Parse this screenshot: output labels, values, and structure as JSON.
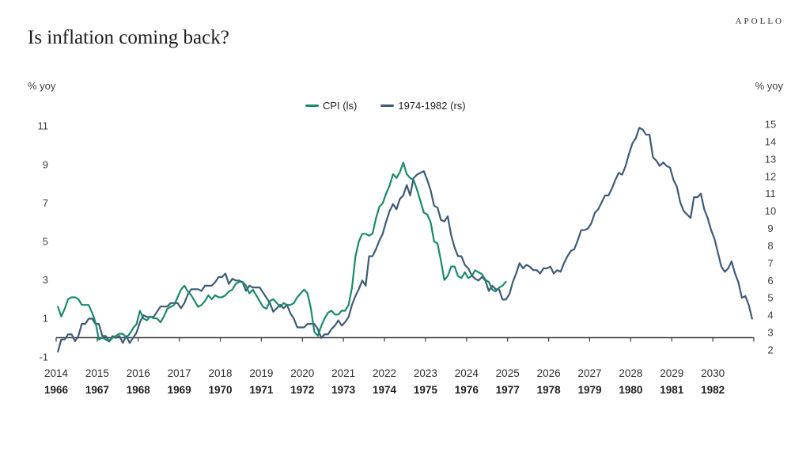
{
  "brand": {
    "logo_text": "APOLLO"
  },
  "header": {
    "title": "Is inflation coming back?"
  },
  "axes": {
    "left_unit_label": "% yoy",
    "right_unit_label": "% yoy"
  },
  "chart_data": {
    "type": "line",
    "title": "Is inflation coming back?",
    "ylabel_left": "% yoy",
    "ylabel_right": "% yoy",
    "grid": false,
    "legend_position": "top-center",
    "left_ylim": [
      -1,
      11
    ],
    "right_ylim": [
      2,
      15
    ],
    "left_ticks": [
      -1,
      1,
      3,
      5,
      7,
      9,
      11
    ],
    "right_ticks": [
      2,
      3,
      4,
      5,
      6,
      7,
      8,
      9,
      10,
      11,
      12,
      13,
      14,
      15
    ],
    "x_months_total": 204,
    "x_labels_top": [
      "2014",
      "2015",
      "2016",
      "2017",
      "2018",
      "2019",
      "2020",
      "2021",
      "2022",
      "2023",
      "2024",
      "2025",
      "2026",
      "2027",
      "2028",
      "2029",
      "2030"
    ],
    "x_labels_bottom": [
      "1966",
      "1967",
      "1968",
      "1969",
      "1970",
      "1971",
      "1972",
      "1973",
      "1974",
      "1975",
      "1976",
      "1977",
      "1978",
      "1979",
      "1980",
      "1981",
      "1982"
    ],
    "axis_color": "#3c3c3c",
    "series": [
      {
        "name": "1974-1982 (rs)",
        "axis": "right",
        "color": "#3f5a76",
        "start_month_index": 0,
        "frequency": "monthly",
        "period": "1966-01 to 1982-12",
        "values": [
          1.9,
          2.6,
          2.6,
          2.9,
          2.9,
          2.5,
          2.8,
          3.5,
          3.5,
          3.8,
          3.8,
          3.5,
          3.5,
          2.8,
          2.8,
          2.5,
          2.8,
          2.7,
          2.8,
          2.4,
          2.8,
          2.4,
          2.7,
          3.0,
          3.6,
          4.0,
          3.9,
          3.9,
          3.9,
          4.2,
          4.5,
          4.5,
          4.5,
          4.7,
          4.7,
          4.7,
          4.4,
          4.7,
          5.2,
          5.5,
          5.5,
          5.5,
          5.4,
          5.7,
          5.7,
          5.7,
          5.9,
          6.2,
          6.2,
          6.4,
          5.8,
          6.1,
          6.0,
          6.0,
          5.9,
          5.4,
          5.7,
          5.6,
          5.6,
          5.6,
          5.3,
          5.0,
          4.7,
          4.2,
          4.4,
          4.6,
          4.4,
          4.6,
          4.1,
          3.8,
          3.3,
          3.3,
          3.3,
          3.5,
          3.5,
          3.5,
          3.2,
          2.7,
          2.9,
          2.9,
          3.2,
          3.4,
          3.7,
          3.4,
          3.6,
          3.9,
          4.6,
          5.1,
          5.5,
          6.0,
          5.7,
          7.4,
          7.4,
          7.8,
          8.3,
          8.7,
          9.4,
          10.0,
          10.4,
          10.1,
          10.7,
          10.9,
          11.5,
          10.9,
          11.9,
          12.1,
          12.2,
          12.3,
          11.8,
          11.2,
          10.3,
          10.2,
          9.5,
          9.4,
          9.7,
          8.6,
          7.9,
          7.4,
          7.4,
          6.9,
          6.7,
          6.3,
          6.1,
          6.0,
          6.2,
          6.0,
          5.4,
          5.7,
          5.5,
          5.5,
          4.9,
          4.9,
          5.2,
          5.9,
          6.4,
          7.0,
          6.7,
          6.9,
          6.8,
          6.6,
          6.6,
          6.4,
          6.7,
          6.7,
          6.8,
          6.4,
          6.6,
          6.5,
          7.0,
          7.4,
          7.7,
          7.8,
          8.3,
          8.9,
          8.9,
          9.0,
          9.3,
          9.9,
          10.1,
          10.5,
          10.9,
          10.9,
          11.3,
          11.8,
          12.2,
          12.1,
          12.6,
          13.3,
          13.9,
          14.2,
          14.8,
          14.7,
          14.4,
          14.4,
          13.1,
          12.9,
          12.6,
          12.8,
          12.6,
          12.5,
          11.8,
          11.4,
          10.5,
          10.0,
          9.8,
          9.6,
          10.8,
          10.8,
          11.0,
          10.1,
          9.6,
          8.9,
          8.4,
          7.6,
          6.8,
          6.5,
          6.7,
          7.1,
          6.4,
          5.9,
          5.0,
          5.1,
          4.6,
          3.8
        ]
      },
      {
        "name": "CPI (ls)",
        "axis": "left",
        "color": "#1a8a6a",
        "start_month_index": 0,
        "frequency": "monthly",
        "period": "2014-01 to 2024-12",
        "values": [
          1.6,
          1.1,
          1.5,
          2.0,
          2.1,
          2.1,
          2.0,
          1.7,
          1.7,
          1.7,
          1.3,
          0.8,
          -0.1,
          0.0,
          -0.1,
          -0.2,
          0.0,
          0.1,
          0.2,
          0.2,
          0.0,
          0.2,
          0.5,
          0.7,
          1.4,
          1.0,
          0.9,
          1.1,
          1.0,
          1.0,
          0.8,
          1.1,
          1.5,
          1.6,
          1.7,
          2.1,
          2.5,
          2.7,
          2.4,
          2.2,
          1.9,
          1.6,
          1.7,
          1.9,
          2.2,
          2.0,
          2.2,
          2.1,
          2.1,
          2.2,
          2.4,
          2.5,
          2.8,
          2.9,
          2.9,
          2.7,
          2.3,
          2.5,
          2.2,
          1.9,
          1.6,
          1.5,
          1.9,
          2.0,
          1.8,
          1.6,
          1.8,
          1.7,
          1.7,
          1.8,
          2.1,
          2.3,
          2.5,
          2.3,
          1.5,
          0.3,
          0.1,
          0.6,
          1.0,
          1.3,
          1.4,
          1.2,
          1.2,
          1.4,
          1.4,
          1.7,
          2.6,
          4.2,
          5.0,
          5.4,
          5.4,
          5.3,
          5.4,
          6.2,
          6.8,
          7.0,
          7.5,
          7.9,
          8.5,
          8.3,
          8.6,
          9.1,
          8.5,
          8.3,
          8.2,
          7.7,
          7.1,
          6.5,
          6.4,
          6.0,
          5.0,
          4.9,
          4.0,
          3.0,
          3.2,
          3.7,
          3.7,
          3.2,
          3.1,
          3.4,
          3.1,
          3.2,
          3.5,
          3.4,
          3.3,
          3.0,
          2.9,
          2.5,
          2.4,
          2.6,
          2.7,
          2.9
        ]
      }
    ]
  }
}
